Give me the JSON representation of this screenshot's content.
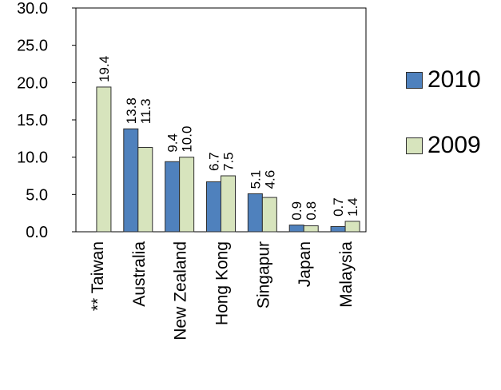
{
  "chart_data": {
    "type": "bar",
    "categories": [
      "** Taiwan",
      "Australia",
      "New Zealand",
      "Hong Kong",
      "Singapur",
      "Japan",
      "Malaysia"
    ],
    "series": [
      {
        "name": "2010",
        "color": "#4f81bd",
        "values": [
          null,
          13.8,
          9.4,
          6.7,
          5.1,
          0.9,
          0.7
        ],
        "labels": [
          "",
          "13.8",
          "9.4",
          "6.7",
          "5.1",
          "0.9",
          "0.7"
        ]
      },
      {
        "name": "2009",
        "color": "#d7e4bd",
        "values": [
          19.4,
          11.3,
          10.0,
          7.5,
          4.6,
          0.8,
          1.4
        ],
        "labels": [
          "19.4",
          "11.3",
          "10.0",
          "7.5",
          "4.6",
          "0.8",
          "1.4"
        ]
      }
    ],
    "y_ticks": [
      "0.0",
      "5.0",
      "10.0",
      "15.0",
      "20.0",
      "25.0",
      "30.0"
    ],
    "ylim": [
      0,
      30
    ],
    "grid": false,
    "legend_position": "right",
    "title": "",
    "xlabel": "",
    "ylabel": ""
  }
}
